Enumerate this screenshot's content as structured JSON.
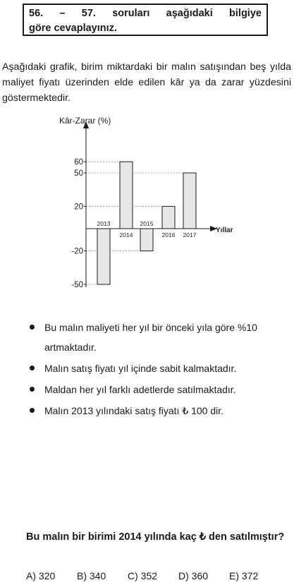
{
  "header": {
    "line1": [
      "56.",
      "–",
      "57.",
      "soruları",
      "aşağıdaki",
      "bilgiye"
    ],
    "line2": "göre cevaplayınız."
  },
  "intro": "Aşağıdaki grafik, birim miktardaki bir malın satışından beş yılda maliyet fiyatı üzerinden elde edilen kâr ya da zarar yüzdesini göstermektedir.",
  "chart_data": {
    "type": "bar",
    "ylabel": "Kâr-Zarar (%)",
    "xlabel": "Yıllar",
    "categories": [
      "2013",
      "2014",
      "2015",
      "2016",
      "2017"
    ],
    "values": [
      -50,
      60,
      -20,
      20,
      50
    ],
    "yticks": [
      60,
      50,
      20,
      -20,
      -50
    ],
    "ylim": [
      -50,
      60
    ],
    "bar_color": "#e6e6e6",
    "grid": "dashed guide lines from y-axis to bar tops"
  },
  "bullets": [
    "Bu malın maliyeti her yıl bir önceki yıla göre %10 artmaktadır.",
    "Malın satış fiyatı yıl içinde sabit kalmaktadır.",
    "Maldan her yıl farklı adetlerde satılmaktadır.",
    "Malın 2013 yılındaki satış fiyatı ₺ 100 dir."
  ],
  "question": "Bu malın bir birimi 2014 yılında kaç ₺ den satılmıştır?",
  "options": [
    "A) 320",
    "B) 340",
    "C) 352",
    "D) 360",
    "E) 372"
  ]
}
